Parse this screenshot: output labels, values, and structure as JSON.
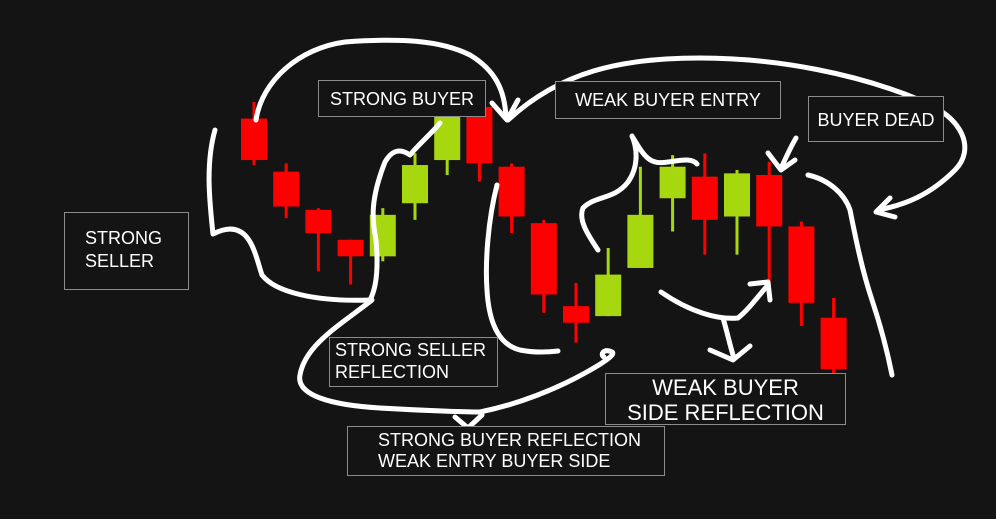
{
  "chart_data": {
    "type": "candlestick",
    "colors": {
      "bullish": "#a6d70f",
      "bearish": "#ff0000",
      "background": "#141414",
      "annotation": "#ffffff",
      "box_border": "#8c8c8c"
    },
    "candles": [
      {
        "open": 8.4,
        "high": 9.4,
        "low": 5.6,
        "close": 5.9,
        "color": "bearish"
      },
      {
        "open": 5.2,
        "high": 5.7,
        "low": 2.4,
        "close": 3.1,
        "color": "bearish"
      },
      {
        "open": 2.9,
        "high": 3.0,
        "low": -0.8,
        "close": 1.5,
        "color": "bearish"
      },
      {
        "open": 1.1,
        "high": 1.1,
        "low": -1.6,
        "close": 0.1,
        "color": "bearish"
      },
      {
        "open": 0.1,
        "high": 3.0,
        "low": -0.2,
        "close": 2.6,
        "color": "bullish"
      },
      {
        "open": 3.3,
        "high": 6.3,
        "low": 2.3,
        "close": 5.6,
        "color": "bullish"
      },
      {
        "open": 5.9,
        "high": 10.1,
        "low": 5.0,
        "close": 9.2,
        "color": "bullish"
      },
      {
        "open": 9.1,
        "high": 9.8,
        "low": 4.6,
        "close": 5.7,
        "color": "bearish"
      },
      {
        "open": 5.5,
        "high": 5.7,
        "low": 1.5,
        "close": 2.5,
        "color": "bearish"
      },
      {
        "open": 2.1,
        "high": 2.3,
        "low": -3.3,
        "close": -2.2,
        "color": "bearish"
      },
      {
        "open": -2.9,
        "high": -1.5,
        "low": -5.1,
        "close": -3.9,
        "color": "bearish"
      },
      {
        "open": -3.5,
        "high": 0.6,
        "low": -3.5,
        "close": -1.0,
        "color": "bullish"
      },
      {
        "open": -0.6,
        "high": 5.5,
        "low": -0.6,
        "close": 2.6,
        "color": "bullish"
      },
      {
        "open": 3.6,
        "high": 6.2,
        "low": 1.6,
        "close": 5.5,
        "color": "bullish"
      },
      {
        "open": 4.9,
        "high": 6.3,
        "low": 0.2,
        "close": 2.3,
        "color": "bearish"
      },
      {
        "open": 2.5,
        "high": 5.3,
        "low": 0.2,
        "close": 5.1,
        "color": "bullish"
      },
      {
        "open": 5.0,
        "high": 5.8,
        "low": -1.5,
        "close": 1.9,
        "color": "bearish"
      },
      {
        "open": 1.9,
        "high": 2.2,
        "low": -4.1,
        "close": -2.7,
        "color": "bearish"
      },
      {
        "open": -3.6,
        "high": -2.4,
        "low": -7.8,
        "close": -6.7,
        "color": "bearish"
      }
    ],
    "annotations": [
      {
        "id": "strong-seller",
        "text": "STRONG\nSELLER"
      },
      {
        "id": "strong-buyer",
        "text": "STRONG BUYER"
      },
      {
        "id": "weak-buyer-entry",
        "text": "WEAK BUYER ENTRY"
      },
      {
        "id": "buyer-dead",
        "text": "BUYER DEAD"
      },
      {
        "id": "strong-seller-reflection",
        "text": "STRONG SELLER\n  REFLECTION"
      },
      {
        "id": "weak-buyer-side-reflection",
        "text": "WEAK BUYER\nSIDE REFLECTION"
      },
      {
        "id": "strong-buyer-reflection",
        "text": "STRONG BUYER REFLECTION\n    WEAK ENTRY BUYER SIDE"
      }
    ]
  }
}
